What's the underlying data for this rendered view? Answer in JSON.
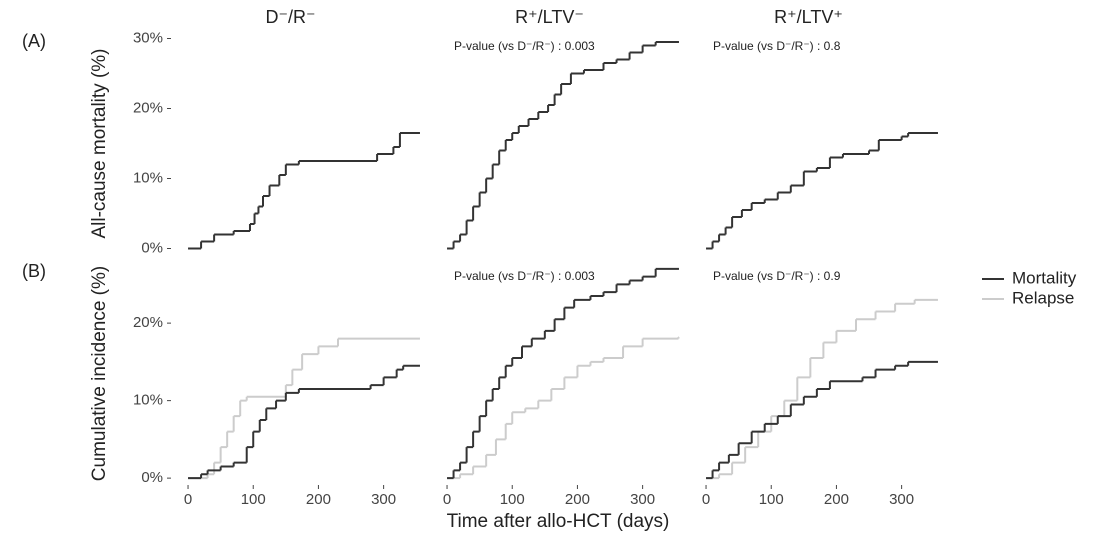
{
  "figure": {
    "row_labels": [
      "(A)",
      "(B)"
    ],
    "xlabel": "Time after allo-HCT (days)"
  },
  "chart_data": [
    {
      "type": "line",
      "step": true,
      "title": "D⁻/R⁻",
      "ylabel": "All-cause mortality (%)",
      "xlim": [
        -20,
        365
      ],
      "ylim": [
        -0.5,
        30.5
      ],
      "yticks": [
        {
          "value": 0,
          "label": "0%"
        },
        {
          "value": 10,
          "label": "10%"
        },
        {
          "value": 20,
          "label": "20%"
        },
        {
          "value": 30,
          "label": "30%"
        }
      ],
      "series": [
        {
          "color": "#333333",
          "x": [
            0,
            20,
            40,
            70,
            95,
            102,
            108,
            115,
            125,
            140,
            150,
            170,
            290,
            315,
            325,
            355
          ],
          "values": [
            0,
            1,
            2,
            2.5,
            3.5,
            5,
            6,
            7.5,
            9,
            10.5,
            12,
            12.5,
            13.5,
            14.5,
            16.5,
            16.5
          ]
        }
      ]
    },
    {
      "type": "line",
      "step": true,
      "title": "R⁺/LTV⁻",
      "annotation": "P-value (vs D⁻/R⁻) : 0.003",
      "xlim": [
        -20,
        365
      ],
      "ylim": [
        -0.5,
        30.5
      ],
      "series": [
        {
          "color": "#333333",
          "x": [
            0,
            10,
            20,
            30,
            40,
            50,
            60,
            70,
            80,
            90,
            100,
            110,
            125,
            140,
            155,
            165,
            175,
            190,
            210,
            240,
            260,
            280,
            300,
            320,
            355
          ],
          "values": [
            0,
            1,
            2,
            4,
            6,
            8,
            10,
            12,
            14,
            15.5,
            16.5,
            17.5,
            18.5,
            19.5,
            20.5,
            22,
            23.5,
            25,
            25.5,
            26.5,
            27,
            28,
            29,
            29.5,
            29.5
          ]
        }
      ]
    },
    {
      "type": "line",
      "step": true,
      "title": "R⁺/LTV⁺",
      "annotation": "P-value (vs D⁻/R⁻) : 0.8",
      "xlim": [
        -20,
        365
      ],
      "ylim": [
        -0.5,
        30.5
      ],
      "series": [
        {
          "color": "#333333",
          "x": [
            0,
            10,
            20,
            30,
            40,
            55,
            70,
            90,
            110,
            130,
            150,
            170,
            190,
            210,
            250,
            265,
            300,
            310,
            355
          ],
          "values": [
            0,
            1,
            2,
            3,
            4.5,
            5.5,
            6.5,
            7,
            8,
            9,
            11,
            11.5,
            13,
            13.5,
            14,
            15.5,
            16,
            16.5,
            16.5
          ]
        }
      ]
    },
    {
      "type": "line",
      "step": true,
      "ylabel": "Cumulative incidence (%)",
      "xlim": [
        -20,
        365
      ],
      "ylim": [
        -0.5,
        27.5
      ],
      "xticks": [
        0,
        100,
        200,
        300
      ],
      "yticks": [
        {
          "value": 0,
          "label": "0%"
        },
        {
          "value": 10,
          "label": "10%"
        },
        {
          "value": 20,
          "label": "20%"
        }
      ],
      "series": [
        {
          "color": "#cccccc",
          "x": [
            0,
            30,
            40,
            50,
            60,
            70,
            80,
            90,
            150,
            160,
            175,
            200,
            230,
            355
          ],
          "values": [
            0,
            0.5,
            2,
            4,
            6,
            8,
            10,
            10.5,
            12,
            14,
            16,
            17,
            18,
            18
          ]
        },
        {
          "color": "#333333",
          "x": [
            0,
            20,
            30,
            50,
            70,
            90,
            100,
            110,
            120,
            135,
            150,
            170,
            280,
            300,
            320,
            330,
            355
          ],
          "values": [
            0,
            0.5,
            1,
            1.5,
            2,
            4,
            6,
            7.5,
            9,
            10,
            11,
            11.5,
            12,
            13,
            14,
            14.5,
            14.5
          ]
        }
      ]
    },
    {
      "type": "line",
      "step": true,
      "annotation": "P-value (vs D⁻/R⁻) : 0.003",
      "xlim": [
        -20,
        365
      ],
      "ylim": [
        -0.5,
        27.5
      ],
      "xticks": [
        0,
        100,
        200,
        300
      ],
      "series": [
        {
          "color": "#cccccc",
          "x": [
            0,
            20,
            40,
            60,
            75,
            90,
            100,
            120,
            140,
            160,
            180,
            200,
            220,
            240,
            270,
            300,
            355
          ],
          "values": [
            0,
            0.5,
            1.5,
            3,
            5,
            7,
            8.5,
            9,
            10,
            11.5,
            13,
            14.5,
            15,
            15.5,
            17,
            18,
            18.2
          ]
        },
        {
          "color": "#333333",
          "x": [
            0,
            10,
            20,
            30,
            40,
            50,
            60,
            70,
            80,
            90,
            100,
            115,
            130,
            150,
            165,
            180,
            195,
            220,
            240,
            260,
            280,
            300,
            320,
            355
          ],
          "values": [
            0,
            1,
            2,
            4,
            6,
            8,
            10,
            11.5,
            13,
            14.5,
            15.5,
            17,
            18,
            19,
            20.5,
            22,
            23,
            23.5,
            24,
            25,
            25.5,
            26,
            27,
            27
          ]
        }
      ]
    },
    {
      "type": "line",
      "step": true,
      "annotation": "P-value (vs D⁻/R⁻) : 0.9",
      "legend": "right",
      "xlim": [
        -20,
        365
      ],
      "ylim": [
        -0.5,
        27.5
      ],
      "xticks": [
        0,
        100,
        200,
        300
      ],
      "series": [
        {
          "name": "Relapse",
          "color": "#cccccc",
          "x": [
            0,
            20,
            40,
            60,
            80,
            100,
            120,
            140,
            160,
            180,
            200,
            230,
            260,
            290,
            320,
            355
          ],
          "values": [
            0,
            0.5,
            2,
            4,
            6,
            8,
            10,
            13,
            15.5,
            17.5,
            19,
            20.5,
            21.5,
            22.5,
            23,
            23
          ]
        },
        {
          "name": "Mortality",
          "color": "#333333",
          "x": [
            0,
            10,
            20,
            35,
            50,
            70,
            90,
            110,
            130,
            150,
            170,
            190,
            240,
            260,
            290,
            310,
            355
          ],
          "values": [
            0,
            1,
            2,
            3,
            4.5,
            6,
            7,
            8,
            9.5,
            10.5,
            11.5,
            12.5,
            13,
            14,
            14.5,
            15,
            15
          ]
        }
      ]
    }
  ]
}
